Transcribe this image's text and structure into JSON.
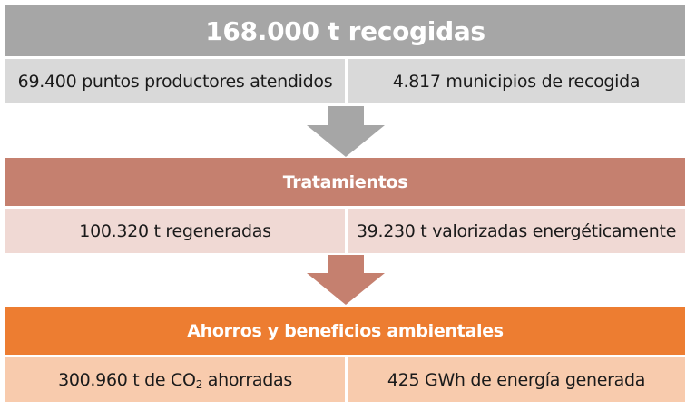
{
  "colors": {
    "gray_header": "#a6a6a6",
    "gray_row": "#d9d9d9",
    "brown_header": "#c5806f",
    "brown_row": "#f0d9d4",
    "orange_header": "#ed7d31",
    "orange_row": "#f8cbad"
  },
  "collection": {
    "title": "168.000 t recogidas",
    "left": "69.400 puntos productores atendidos",
    "right": "4.817 municipios de recogida"
  },
  "treatment": {
    "title": "Tratamientos",
    "left": "100.320 t regeneradas",
    "right": "39.230 t valorizadas energéticamente"
  },
  "benefits": {
    "title": "Ahorros y beneficios ambientales",
    "left_prefix": "300.960 t de CO",
    "left_sub": "2",
    "left_suffix": " ahorradas",
    "right": "425 GWh de energía generada"
  },
  "arrows": [
    "down-arrow-icon",
    "down-arrow-icon"
  ]
}
